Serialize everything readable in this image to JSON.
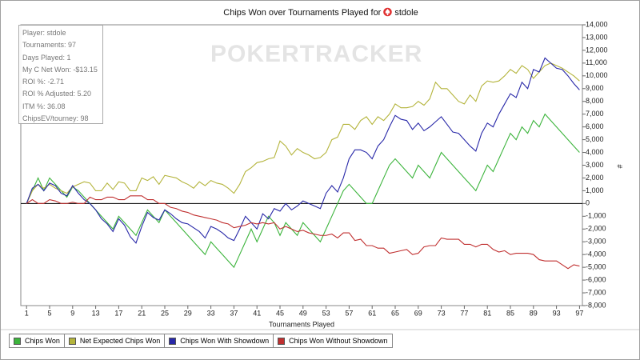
{
  "chart_data": {
    "type": "line",
    "title": "Chips Won over Tournaments Played for",
    "player": "stdole",
    "watermark": "POKERTRACKER",
    "annotations": [
      "Player: stdole",
      "Tournaments: 97",
      "Days Played: 1",
      "My C Net Won: -$13.15",
      "ROI %: -2.71",
      "ROI % Adjusted: 5.20",
      "ITM %: 36.08",
      "ChipsEV/tourney: 98"
    ],
    "xlabel": "Tournaments Played",
    "ylabel": "#",
    "x": [
      1,
      2,
      3,
      4,
      5,
      6,
      7,
      8,
      9,
      10,
      11,
      12,
      13,
      14,
      15,
      16,
      17,
      18,
      19,
      20,
      21,
      22,
      23,
      24,
      25,
      26,
      27,
      28,
      29,
      30,
      31,
      32,
      33,
      34,
      35,
      36,
      37,
      38,
      39,
      40,
      41,
      42,
      43,
      44,
      45,
      46,
      47,
      48,
      49,
      50,
      51,
      52,
      53,
      54,
      55,
      56,
      57,
      58,
      59,
      60,
      61,
      62,
      63,
      64,
      65,
      66,
      67,
      68,
      69,
      70,
      71,
      72,
      73,
      74,
      75,
      76,
      77,
      78,
      79,
      80,
      81,
      82,
      83,
      84,
      85,
      86,
      87,
      88,
      89,
      90,
      91,
      92,
      93,
      94,
      95,
      96,
      97
    ],
    "xlim": [
      0,
      97.5
    ],
    "xticks": [
      1,
      5,
      9,
      13,
      17,
      21,
      25,
      29,
      33,
      37,
      41,
      45,
      49,
      53,
      57,
      61,
      65,
      69,
      73,
      77,
      81,
      85,
      89,
      93,
      97
    ],
    "ylim": [
      -8000,
      14000
    ],
    "yticks": [
      {
        "value": -8000,
        "label": "-8,000"
      },
      {
        "value": -7000,
        "label": "-7,000"
      },
      {
        "value": -6000,
        "label": "-6,000"
      },
      {
        "value": -5000,
        "label": "-5,000"
      },
      {
        "value": -4000,
        "label": "-4,000"
      },
      {
        "value": -3000,
        "label": "-3,000"
      },
      {
        "value": -2000,
        "label": "-2,000"
      },
      {
        "value": -1000,
        "label": "-1,000"
      },
      0,
      {
        "value": 1000,
        "label": "1,000"
      },
      {
        "value": 2000,
        "label": "2,000"
      },
      {
        "value": 3000,
        "label": "3,000"
      },
      {
        "value": 4000,
        "label": "4,000"
      },
      {
        "value": 5000,
        "label": "5,000"
      },
      {
        "value": 6000,
        "label": "6,000"
      },
      {
        "value": 7000,
        "label": "7,000"
      },
      {
        "value": 8000,
        "label": "8,000"
      },
      {
        "value": 9000,
        "label": "9,000"
      },
      {
        "value": 10000,
        "label": "10,000"
      },
      {
        "value": 11000,
        "label": "11,000"
      },
      {
        "value": 12000,
        "label": "12,000"
      },
      {
        "value": 13000,
        "label": "13,000"
      },
      {
        "value": 14000,
        "label": "14,000"
      }
    ],
    "series": [
      {
        "name": "Chips Won",
        "color": "#3cb43c",
        "values": [
          0,
          1000,
          2000,
          1000,
          2000,
          1500,
          1000,
          500,
          1300,
          1000,
          500,
          0,
          -500,
          -1000,
          -1500,
          -2000,
          -1000,
          -1500,
          -2000,
          -2500,
          -1500,
          -500,
          -1000,
          -1500,
          -500,
          -1000,
          -1500,
          -2000,
          -2500,
          -3000,
          -3500,
          -4000,
          -3000,
          -3500,
          -4000,
          -4500,
          -5000,
          -4000,
          -3000,
          -2000,
          -3000,
          -2000,
          -1000,
          -1500,
          -2500,
          -1500,
          -2000,
          -2500,
          -1500,
          -2000,
          -2500,
          -3000,
          -2000,
          -1000,
          0,
          1000,
          1500,
          1000,
          500,
          0,
          0,
          1000,
          2000,
          3000,
          3500,
          3000,
          2500,
          2000,
          3000,
          2500,
          2000,
          3000,
          4000,
          3500,
          3000,
          2500,
          2000,
          1500,
          1000,
          2000,
          3000,
          2500,
          3500,
          4500,
          5500,
          5000,
          6000,
          5500,
          6500,
          6000,
          7000,
          6500,
          6000,
          5500,
          5000,
          4500,
          4000
        ]
      },
      {
        "name": "Net Expected Chips Won",
        "color": "#b4b43c",
        "values": [
          0,
          1000,
          1500,
          1200,
          1500,
          1200,
          1000,
          800,
          1300,
          1500,
          1700,
          1600,
          1000,
          1000,
          1600,
          1100,
          1700,
          1600,
          1000,
          1000,
          2000,
          1800,
          2100,
          1500,
          2200,
          2100,
          2000,
          1700,
          1500,
          1200,
          1700,
          1400,
          1800,
          1600,
          1500,
          1200,
          800,
          1500,
          2500,
          2800,
          3200,
          3300,
          3500,
          3600,
          4900,
          4500,
          3800,
          4300,
          4000,
          3800,
          3500,
          3600,
          4000,
          5000,
          5200,
          6200,
          6200,
          5800,
          6500,
          6800,
          6200,
          6800,
          6500,
          7000,
          7800,
          7500,
          7500,
          7600,
          8000,
          7700,
          8200,
          9500,
          9000,
          9000,
          8500,
          8000,
          7800,
          8500,
          8000,
          9200,
          9600,
          9500,
          9600,
          10000,
          10500,
          10200,
          10800,
          10500,
          9800,
          10300,
          10800,
          11000,
          10800,
          10600,
          10300,
          10000,
          9600
        ]
      },
      {
        "name": "Chips Won With Showdown",
        "color": "#2828a8",
        "values": [
          0,
          1200,
          1500,
          1000,
          1600,
          1400,
          800,
          600,
          1400,
          800,
          300,
          0,
          -500,
          -1200,
          -1600,
          -2200,
          -1200,
          -1700,
          -2600,
          -3100,
          -1800,
          -700,
          -1100,
          -1300,
          -500,
          -800,
          -1200,
          -1500,
          -1600,
          -1900,
          -2200,
          -2700,
          -1800,
          -2000,
          -2300,
          -2700,
          -2900,
          -2000,
          -1000,
          -1500,
          -2000,
          -800,
          -1200,
          -400,
          -600,
          0,
          -500,
          -200,
          200,
          0,
          -200,
          -400,
          800,
          1400,
          900,
          2000,
          3500,
          4200,
          4200,
          4000,
          3500,
          4500,
          5000,
          6000,
          6900,
          6600,
          6500,
          5800,
          6300,
          5700,
          6000,
          6400,
          6800,
          6200,
          5600,
          5500,
          5000,
          4500,
          4100,
          5500,
          6300,
          6000,
          7000,
          7800,
          8600,
          8300,
          9500,
          9000,
          10500,
          10300,
          11400,
          11000,
          10600,
          10500,
          10000,
          9400,
          8900
        ]
      },
      {
        "name": "Chips Won Without Showdown",
        "color": "#c03030",
        "values": [
          0,
          300,
          0,
          0,
          300,
          200,
          0,
          0,
          100,
          0,
          0,
          500,
          300,
          300,
          500,
          500,
          300,
          300,
          600,
          600,
          600,
          300,
          300,
          0,
          0,
          -300,
          -400,
          -600,
          -700,
          -900,
          -1000,
          -1100,
          -1200,
          -1300,
          -1500,
          -1600,
          -1900,
          -1800,
          -1700,
          -1500,
          -1600,
          -1500,
          -1600,
          -1500,
          -2000,
          -1800,
          -2000,
          -2200,
          -2100,
          -2300,
          -2400,
          -2500,
          -2500,
          -2400,
          -2700,
          -2300,
          -2300,
          -2900,
          -2800,
          -3300,
          -3300,
          -3500,
          -3500,
          -3900,
          -3800,
          -3700,
          -3600,
          -4000,
          -3900,
          -3400,
          -3300,
          -3300,
          -2700,
          -2800,
          -2800,
          -2800,
          -3200,
          -3200,
          -3400,
          -3200,
          -3200,
          -3600,
          -3800,
          -3700,
          -4000,
          -3900,
          -3900,
          -3900,
          -4000,
          -4400,
          -4500,
          -4500,
          -4500,
          -4800,
          -5100,
          -4800,
          -4900
        ]
      }
    ]
  }
}
